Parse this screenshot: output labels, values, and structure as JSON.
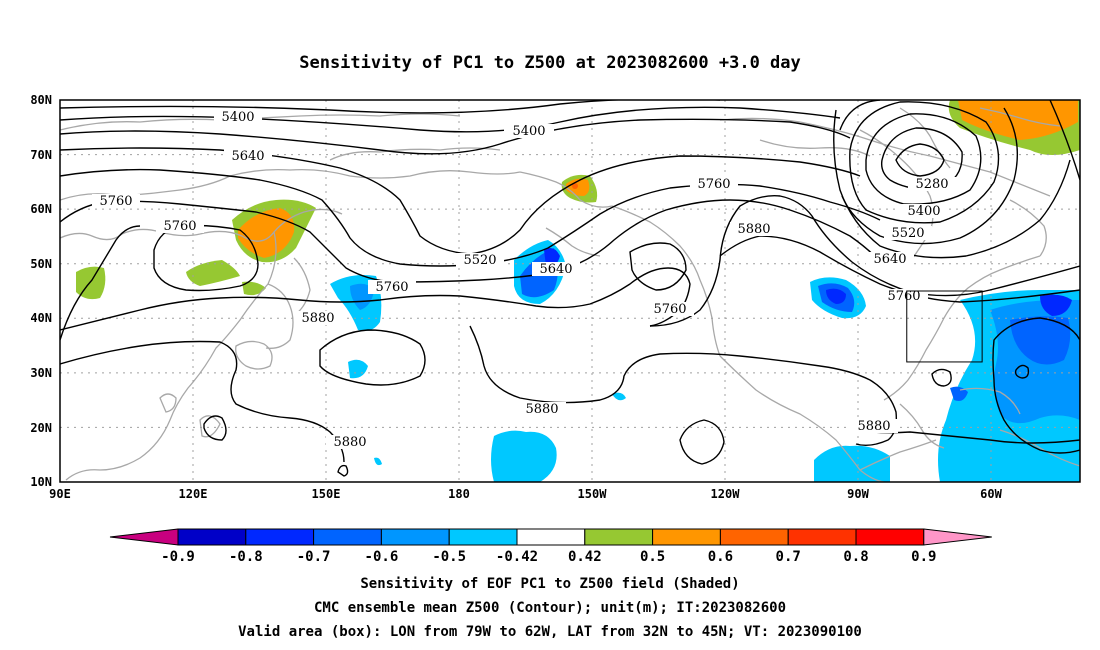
{
  "title": "Sensitivity of PC1 to Z500 at 2023082600 +3.0 day",
  "lat_labels": [
    "80N",
    "70N",
    "60N",
    "50N",
    "40N",
    "30N",
    "20N",
    "10N"
  ],
  "lon_labels": [
    "90E",
    "120E",
    "150E",
    "180",
    "150W",
    "120W",
    "90W",
    "60W"
  ],
  "contour_labels": [
    "5400",
    "5400",
    "5640",
    "5760",
    "5760",
    "5760",
    "5520",
    "5640",
    "5760",
    "5760",
    "5880",
    "5280",
    "5400",
    "5520",
    "5640",
    "5760",
    "5880",
    "5880",
    "5880",
    "5880"
  ],
  "colorbar": {
    "labels": [
      "-0.9",
      "-0.8",
      "-0.7",
      "-0.6",
      "-0.5",
      "-0.42",
      "0.42",
      "0.5",
      "0.6",
      "0.7",
      "0.8",
      "0.9"
    ],
    "colors": [
      "#c8007f",
      "#0000c8",
      "#0028ff",
      "#0064ff",
      "#0096ff",
      "#00c8ff",
      "#ffffff",
      "#96c832",
      "#ff9600",
      "#ff6400",
      "#ff3200",
      "#ff0000",
      "#ff96c8"
    ]
  },
  "footer": {
    "line1": "Sensitivity of EOF PC1 to Z500 field (Shaded)",
    "line2": "CMC ensemble mean Z500 (Contour); unit(m); IT:2023082600",
    "line3": "Valid area (box): LON from 79W to 62W, LAT from 32N to 45N; VT: 2023090100"
  },
  "valid_box": {
    "lon_min": -79,
    "lon_max": -62,
    "lat_min": 32,
    "lat_max": 45
  }
}
